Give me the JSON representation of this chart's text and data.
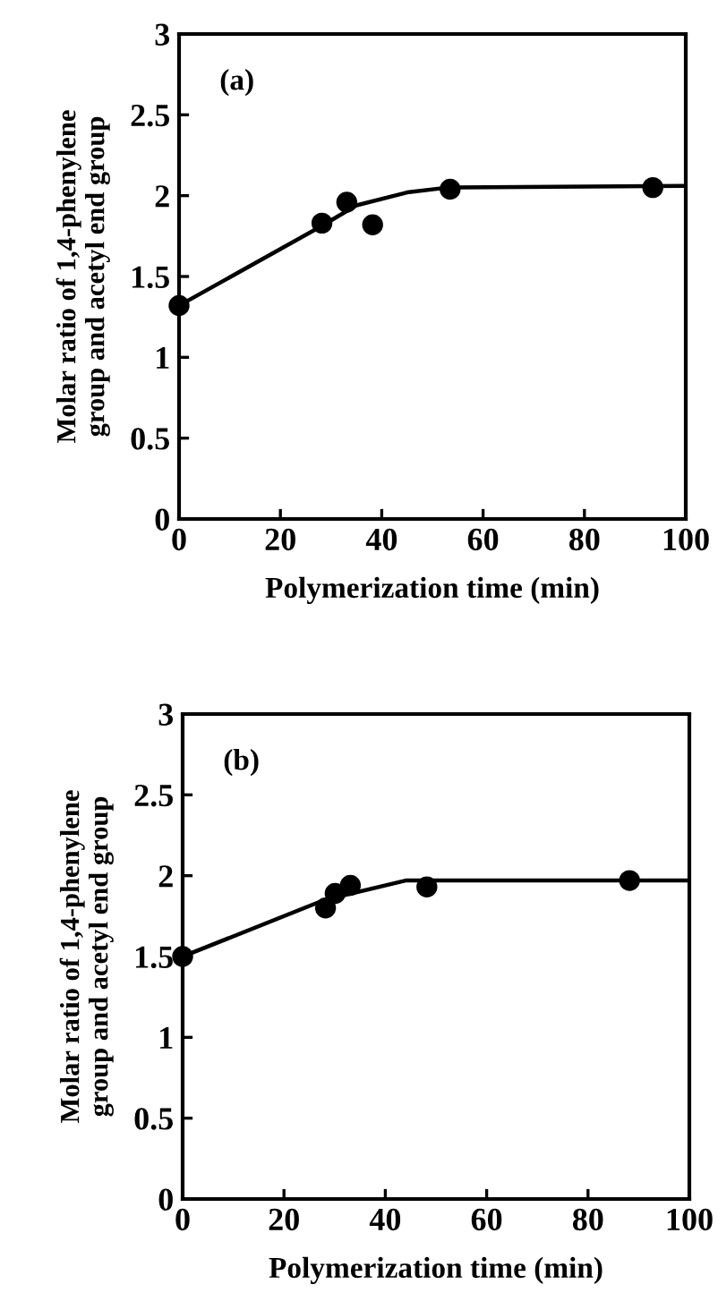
{
  "chart_data": [
    {
      "type": "scatter",
      "xlabel": "Polymerization time (min)",
      "ylabel": "Molar ratio of 1,4-phenylene\ngroup and acetyl end group",
      "annotations": [
        "(a)"
      ],
      "xlim": [
        0,
        100
      ],
      "ylim": [
        0,
        3
      ],
      "xticks": [
        0,
        20,
        40,
        60,
        80,
        100
      ],
      "yticks": [
        0,
        0.5,
        1,
        1.5,
        2,
        2.5,
        3
      ],
      "grid": false,
      "legend": false,
      "series": [
        {
          "marker": "circle",
          "color": "#000000",
          "x": [
            0,
            28.2,
            33.1,
            38.2,
            53.5,
            93.5
          ],
          "values": [
            1.32,
            1.83,
            1.96,
            1.82,
            2.04,
            2.05
          ]
        },
        {
          "type": "line",
          "marker": "none",
          "color": "#000000",
          "x": [
            0,
            28,
            35,
            45,
            53,
            100
          ],
          "values": [
            1.32,
            1.81,
            1.94,
            2.02,
            2.05,
            2.06
          ]
        }
      ]
    },
    {
      "type": "scatter",
      "xlabel": "Polymerization time (min)",
      "ylabel": "Molar ratio of 1,4-phenylene\ngroup and acetyl end group",
      "annotations": [
        "(b)"
      ],
      "xlim": [
        0,
        100
      ],
      "ylim": [
        0,
        3
      ],
      "xticks": [
        0,
        20,
        40,
        60,
        80,
        100
      ],
      "yticks": [
        0,
        0.5,
        1,
        1.5,
        2,
        2.5,
        3
      ],
      "grid": false,
      "legend": false,
      "series": [
        {
          "marker": "circle",
          "color": "#000000",
          "x": [
            0,
            28.2,
            30.1,
            33.1,
            48.2,
            88.2
          ],
          "values": [
            1.5,
            1.8,
            1.89,
            1.94,
            1.93,
            1.97
          ]
        },
        {
          "type": "line",
          "marker": "none",
          "color": "#000000",
          "x": [
            0,
            28,
            44,
            100
          ],
          "values": [
            1.5,
            1.85,
            1.97,
            1.97
          ]
        }
      ]
    }
  ]
}
